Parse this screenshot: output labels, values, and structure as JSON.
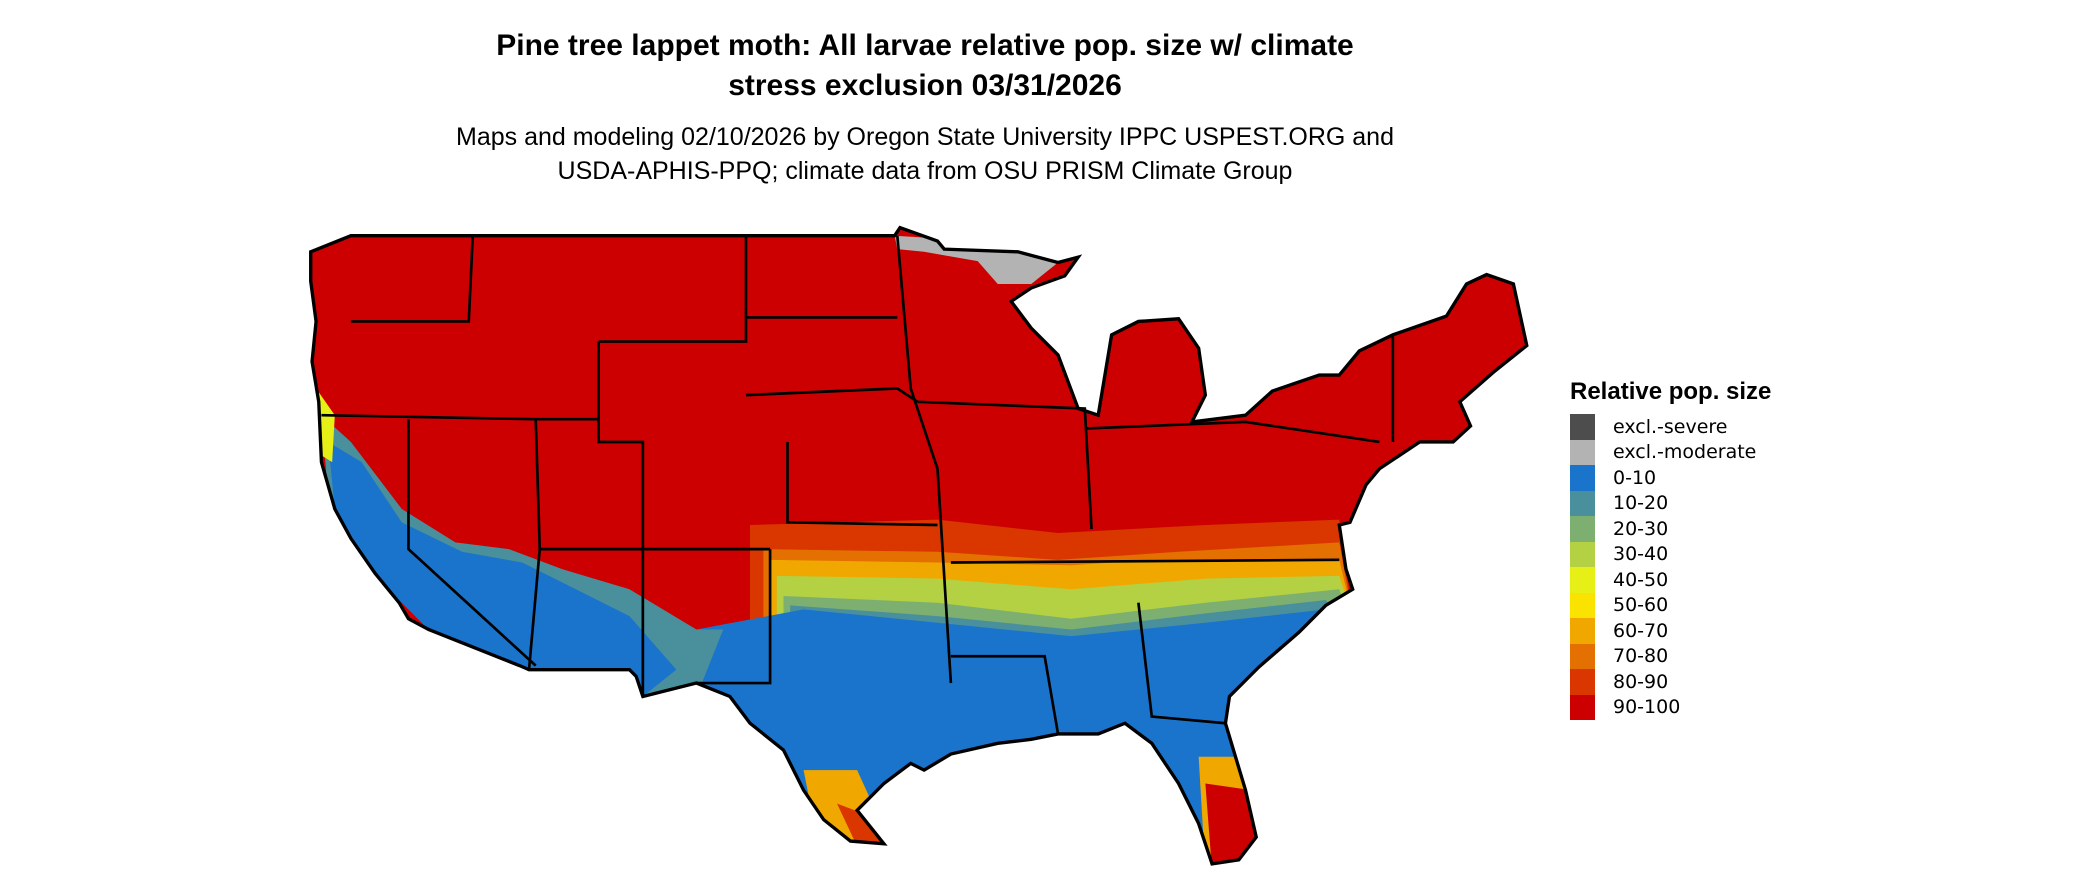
{
  "title": {
    "line1": "Pine tree lappet moth: All larvae relative pop. size w/ climate",
    "line2": "stress exclusion 03/31/2026"
  },
  "subtitle": {
    "line1": "Maps and modeling 02/10/2026 by Oregon State University IPPC USPEST.ORG and",
    "line2": "USDA-APHIS-PPQ; climate data from OSU PRISM Climate Group"
  },
  "legend": {
    "title": "Relative pop. size",
    "items": [
      {
        "label": "excl.-severe",
        "color": "#4d4d4d"
      },
      {
        "label": "excl.-moderate",
        "color": "#b3b3b3"
      },
      {
        "label": "0-10",
        "color": "#1a74cc"
      },
      {
        "label": "10-20",
        "color": "#4a909c"
      },
      {
        "label": "20-30",
        "color": "#7db070"
      },
      {
        "label": "30-40",
        "color": "#b3d142"
      },
      {
        "label": "40-50",
        "color": "#e6f016"
      },
      {
        "label": "50-60",
        "color": "#fae300"
      },
      {
        "label": "60-70",
        "color": "#f0a800"
      },
      {
        "label": "70-80",
        "color": "#e37000"
      },
      {
        "label": "80-90",
        "color": "#d93600"
      },
      {
        "label": "90-100",
        "color": "#cc0000"
      }
    ]
  }
}
